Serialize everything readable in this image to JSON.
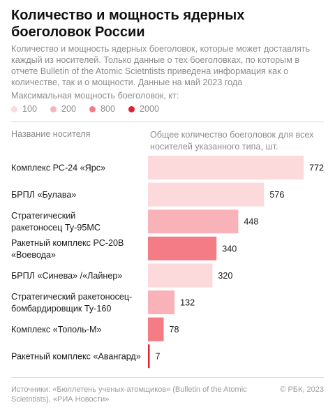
{
  "header": {
    "title": "Количество и мощность ядерных боеголовок России",
    "subtitle": "Количество и мощность ядерных боеголовок, которые может доставлять каждый из носителей. Только данные о тех боеголовках, по которым в отчете Bulletin of the Atomic Scietntists приведена информация как о количестве, так и о мощности. Данные на май 2023 года"
  },
  "legend": {
    "title": "Максимальная мощность боеголовок, кт:",
    "items": [
      {
        "label": "100",
        "color": "#fcd9db"
      },
      {
        "label": "200",
        "color": "#f9b3b8"
      },
      {
        "label": "800",
        "color": "#f47c86"
      },
      {
        "label": "2000",
        "color": "#e2202d"
      }
    ]
  },
  "columns": {
    "carrier": "Название носителя",
    "total": "Общее количество боеголовок для всех носителей указанного типа, шт."
  },
  "chart_data": {
    "type": "bar",
    "orientation": "horizontal",
    "categories": [
      "Комплекс РС-24 «Ярс»",
      "БРПЛ «Булава»",
      "Стратегический ракетоносец Ту-95МС",
      "Ракетный комплекс РС-20В «Воевода»",
      "БРПЛ «Синева» /«Лайнер»",
      "Стратегический ракетоносец-бомбардировщик Ту-160",
      "Комплекс «Тополь-М»",
      "Ракетный комплекс «Авангард»"
    ],
    "label_lines": [
      [
        "Комплекс РС-24 «Ярс»"
      ],
      [
        "БРПЛ «Булава»"
      ],
      [
        "Стратегический",
        "ракетоносец Ту-95МС"
      ],
      [
        "Ракетный комплекс РС-20В",
        "«Воевода»"
      ],
      [
        "БРПЛ «Синева» /«Лайнер»"
      ],
      [
        "Стратегический ракетоносец-",
        "бомбардировщик Ту-160"
      ],
      [
        "Комплекс «Тополь-М»"
      ],
      [
        "Ракетный комплекс «Авангард»"
      ]
    ],
    "values": [
      772,
      576,
      448,
      340,
      320,
      132,
      78,
      7
    ],
    "max_yield_kt": [
      100,
      100,
      200,
      800,
      100,
      200,
      800,
      2000
    ],
    "value_labels": [
      "772",
      "576",
      "448",
      "340",
      "320",
      "132",
      "78",
      "7"
    ],
    "xlim": [
      0,
      772
    ],
    "grid": false,
    "legend_position": "top-left"
  },
  "footer": {
    "source": "Источники: «Бюллетень ученых-атомщиков» (Bulletin of the Atomic Scietntists), «РИА Новости»",
    "copyright": "© РБК, 2023"
  }
}
